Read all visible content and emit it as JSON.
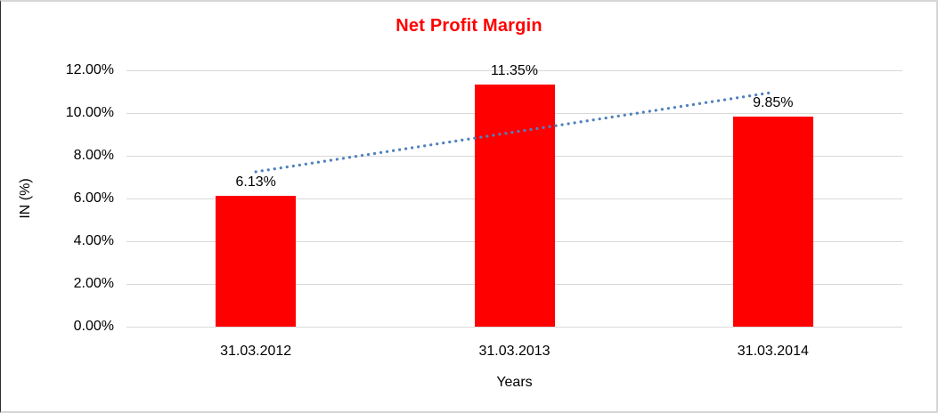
{
  "chart_data": {
    "type": "bar",
    "title": "Net Profit Margin",
    "categories": [
      "31.03.2012",
      "31.03.2013",
      "31.03.2014"
    ],
    "values": [
      6.13,
      11.35,
      9.85
    ],
    "data_labels": [
      "6.13%",
      "11.35%",
      "9.85%"
    ],
    "xlabel": "Years",
    "ylabel": "IN (%)",
    "ylim": [
      0,
      12
    ],
    "ytick_step": 2,
    "ytick_labels": [
      "0.00%",
      "2.00%",
      "4.00%",
      "6.00%",
      "8.00%",
      "10.00%",
      "12.00%"
    ],
    "grid": true,
    "legend": "none",
    "trendline": {
      "type": "linear",
      "style": "dotted"
    },
    "colors": {
      "bar": "#ff0000",
      "title": "#ff0000",
      "trendline": "#4f81bd",
      "gridline": "#d9d9d9",
      "axis_text": "#000000"
    }
  }
}
